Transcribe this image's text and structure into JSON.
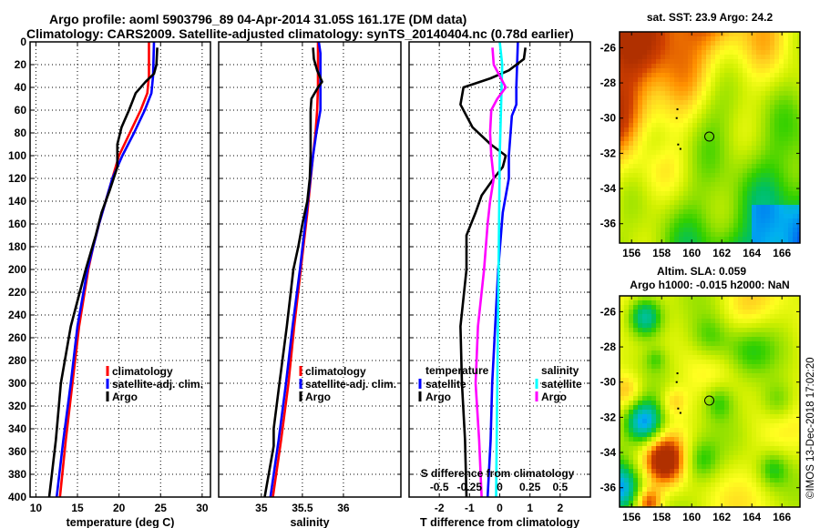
{
  "header": {
    "title_line1": "Argo profile: aoml 5903796_89 04-Apr-2014 31.05S 161.17E (DM data)",
    "title_line2": "Climatology: CARS2009. Satellite-adjusted climatology: synTS_20140404.nc (0.78d earlier)"
  },
  "copyright": "©IMOS 13-Dec-2018 17:02:20",
  "colors": {
    "climatology": "#ff0000",
    "satellite_adj": "#0000ff",
    "argo": "#000000",
    "sal_satellite": "#00ffff",
    "sal_argo": "#ff00ff"
  },
  "chart_data": [
    {
      "type": "line",
      "id": "temperature",
      "xlabel": "temperature (deg C)",
      "ylabel": "",
      "xlim": [
        9.3,
        31.0
      ],
      "ylim": [
        400,
        0
      ],
      "xticks": [
        "10",
        "15",
        "20",
        "25",
        "30"
      ],
      "xtick_values": [
        10,
        15,
        20,
        25,
        30
      ],
      "yticks": [
        "0",
        "20",
        "40",
        "60",
        "80",
        "100",
        "120",
        "140",
        "160",
        "180",
        "200",
        "220",
        "240",
        "260",
        "280",
        "300",
        "320",
        "340",
        "360",
        "380",
        "400"
      ],
      "ytick_values": [
        0,
        20,
        40,
        60,
        80,
        100,
        120,
        140,
        160,
        180,
        200,
        220,
        240,
        260,
        280,
        300,
        320,
        340,
        360,
        380,
        400
      ],
      "grid": true,
      "legend": [
        "climatology",
        "satellite-adj. clim.",
        "Argo"
      ],
      "legend_position": "center-right",
      "series": [
        {
          "name": "climatology",
          "color": "#ff0000",
          "depth": [
            0,
            30,
            45,
            60,
            80,
            100,
            120,
            140,
            160,
            180,
            200,
            250,
            300,
            350,
            400
          ],
          "values": [
            23.6,
            23.6,
            23.4,
            22.6,
            21.3,
            20.0,
            19.2,
            18.4,
            17.6,
            16.9,
            16.3,
            15.2,
            14.4,
            13.6,
            12.9
          ]
        },
        {
          "name": "satellite-adj. clim.",
          "color": "#0000ff",
          "depth": [
            0,
            30,
            45,
            60,
            80,
            100,
            120,
            140,
            160,
            180,
            200,
            250,
            300,
            350,
            400
          ],
          "values": [
            24.2,
            24.1,
            23.9,
            23.1,
            21.8,
            20.4,
            19.2,
            18.4,
            17.6,
            16.9,
            16.2,
            15.0,
            14.2,
            13.3,
            12.5
          ]
        },
        {
          "name": "Argo",
          "color": "#000000",
          "depth": [
            5,
            20,
            28,
            35,
            45,
            60,
            75,
            90,
            100,
            110,
            130,
            150,
            170,
            200,
            250,
            300,
            350,
            400
          ],
          "values": [
            24.6,
            24.5,
            24.2,
            23.2,
            22.0,
            21.2,
            20.3,
            19.8,
            19.8,
            19.8,
            18.9,
            17.9,
            17.2,
            16.0,
            14.2,
            13.0,
            12.4,
            11.6
          ]
        }
      ]
    },
    {
      "type": "line",
      "id": "salinity",
      "xlabel": "salinity",
      "xlim": [
        34.48,
        36.7
      ],
      "ylim": [
        400,
        0
      ],
      "xticks": [
        "35",
        "35.5",
        "36"
      ],
      "xtick_values": [
        35,
        35.5,
        36
      ],
      "grid": true,
      "legend": [
        "climatology",
        "satellite-adj. clim.",
        "Argo"
      ],
      "legend_position": "center-right",
      "series": [
        {
          "name": "climatology",
          "color": "#ff0000",
          "depth": [
            0,
            40,
            60,
            80,
            100,
            150,
            200,
            250,
            300,
            350,
            400
          ],
          "values": [
            35.69,
            35.69,
            35.68,
            35.66,
            35.63,
            35.56,
            35.48,
            35.4,
            35.33,
            35.24,
            35.14
          ]
        },
        {
          "name": "satellite-adj. clim.",
          "color": "#0000ff",
          "depth": [
            0,
            10,
            40,
            60,
            80,
            100,
            150,
            200,
            250,
            300,
            350,
            400
          ],
          "values": [
            35.7,
            35.72,
            35.72,
            35.72,
            35.67,
            35.63,
            35.55,
            35.47,
            35.38,
            35.3,
            35.21,
            35.11
          ]
        },
        {
          "name": "Argo",
          "color": "#000000",
          "depth": [
            5,
            15,
            25,
            35,
            40,
            50,
            60,
            80,
            100,
            120,
            140,
            160,
            180,
            200,
            250,
            300,
            340,
            355,
            400
          ],
          "values": [
            35.63,
            35.64,
            35.68,
            35.74,
            35.69,
            35.61,
            35.6,
            35.6,
            35.6,
            35.59,
            35.56,
            35.5,
            35.45,
            35.39,
            35.31,
            35.22,
            35.15,
            35.15,
            35.04
          ]
        }
      ]
    },
    {
      "type": "line",
      "id": "difference",
      "xlabel": "T difference from climatology",
      "xlabel_top": "S difference from climatology",
      "xlim": [
        -3,
        3
      ],
      "xlim_top": [
        -0.75,
        0.75
      ],
      "ylim": [
        400,
        0
      ],
      "xticks": [
        "-2",
        "-1",
        "0",
        "1",
        "2"
      ],
      "xtick_values": [
        -2,
        -1,
        0,
        1,
        2
      ],
      "xticks_top": [
        "-0.5",
        "-0.25",
        "0",
        "0.25",
        "0.5"
      ],
      "xtick_values_top": [
        -0.5,
        -0.25,
        0,
        0.25,
        0.5
      ],
      "grid": true,
      "legend_temperature_title": "temperature",
      "legend_salinity_title": "salinity",
      "legend": [
        "satellite",
        "Argo",
        "satellite",
        "Argo"
      ],
      "legend_position": "lower-center",
      "series": [
        {
          "name": "T satellite",
          "color": "#0000ff",
          "axis": "T",
          "depth": [
            0,
            40,
            55,
            65,
            100,
            120,
            150,
            200,
            250,
            300,
            350,
            400
          ],
          "values": [
            0.6,
            0.55,
            0.55,
            0.4,
            0.3,
            0.3,
            0.1,
            -0.05,
            -0.15,
            -0.25,
            -0.3,
            -0.4
          ]
        },
        {
          "name": "T Argo",
          "color": "#000000",
          "axis": "T",
          "depth": [
            5,
            15,
            25,
            32,
            40,
            55,
            75,
            90,
            100,
            110,
            120,
            135,
            150,
            170,
            200,
            250,
            300,
            350,
            400
          ],
          "values": [
            0.85,
            0.8,
            0.3,
            -0.3,
            -1.2,
            -1.3,
            -0.9,
            -0.3,
            0.2,
            0.1,
            -0.2,
            -0.6,
            -0.8,
            -1.1,
            -1.1,
            -1.3,
            -1.25,
            -1.15,
            -1.1
          ]
        },
        {
          "name": "S satellite",
          "color": "#00ffff",
          "axis": "S",
          "depth": [
            0,
            20,
            100,
            200,
            300,
            400
          ],
          "values": [
            0.0,
            0.02,
            0.0,
            -0.01,
            -0.02,
            -0.03
          ]
        },
        {
          "name": "S Argo",
          "color": "#ff00ff",
          "axis": "S",
          "depth": [
            5,
            20,
            30,
            40,
            50,
            60,
            80,
            100,
            120,
            140,
            160,
            200,
            250,
            300,
            350,
            400
          ],
          "values": [
            -0.06,
            -0.05,
            0.0,
            0.05,
            -0.02,
            -0.07,
            -0.08,
            -0.07,
            -0.05,
            -0.08,
            -0.1,
            -0.13,
            -0.18,
            -0.2,
            -0.17,
            -0.15
          ]
        }
      ]
    },
    {
      "type": "heatmap",
      "id": "sst-map",
      "title": "sat. SST: 23.9 Argo: 24.2",
      "xlim": [
        155.2,
        167.2
      ],
      "ylim": [
        -37.1,
        -25.1
      ],
      "xticks": [
        "156",
        "158",
        "160",
        "162",
        "164",
        "166"
      ],
      "xtick_values": [
        156,
        158,
        160,
        162,
        164,
        166
      ],
      "yticks": [
        "-26",
        "-28",
        "-30",
        "-32",
        "-34",
        "-36"
      ],
      "ytick_values": [
        -26,
        -28,
        -30,
        -32,
        -34,
        -36
      ],
      "marker": {
        "lon": 161.17,
        "lat": -31.05
      }
    },
    {
      "type": "heatmap",
      "id": "sla-map",
      "title": "Altim. SLA: 0.059",
      "subtitle": "Argo h1000: -0.015 h2000: NaN",
      "xlim": [
        155.2,
        167.2
      ],
      "ylim": [
        -37.1,
        -25.1
      ],
      "xticks": [
        "156",
        "158",
        "160",
        "162",
        "164",
        "166"
      ],
      "xtick_values": [
        156,
        158,
        160,
        162,
        164,
        166
      ],
      "yticks": [
        "-26",
        "-28",
        "-30",
        "-32",
        "-34",
        "-36"
      ],
      "ytick_values": [
        -26,
        -28,
        -30,
        -32,
        -34,
        -36
      ],
      "marker": {
        "lon": 161.17,
        "lat": -31.05
      }
    }
  ]
}
